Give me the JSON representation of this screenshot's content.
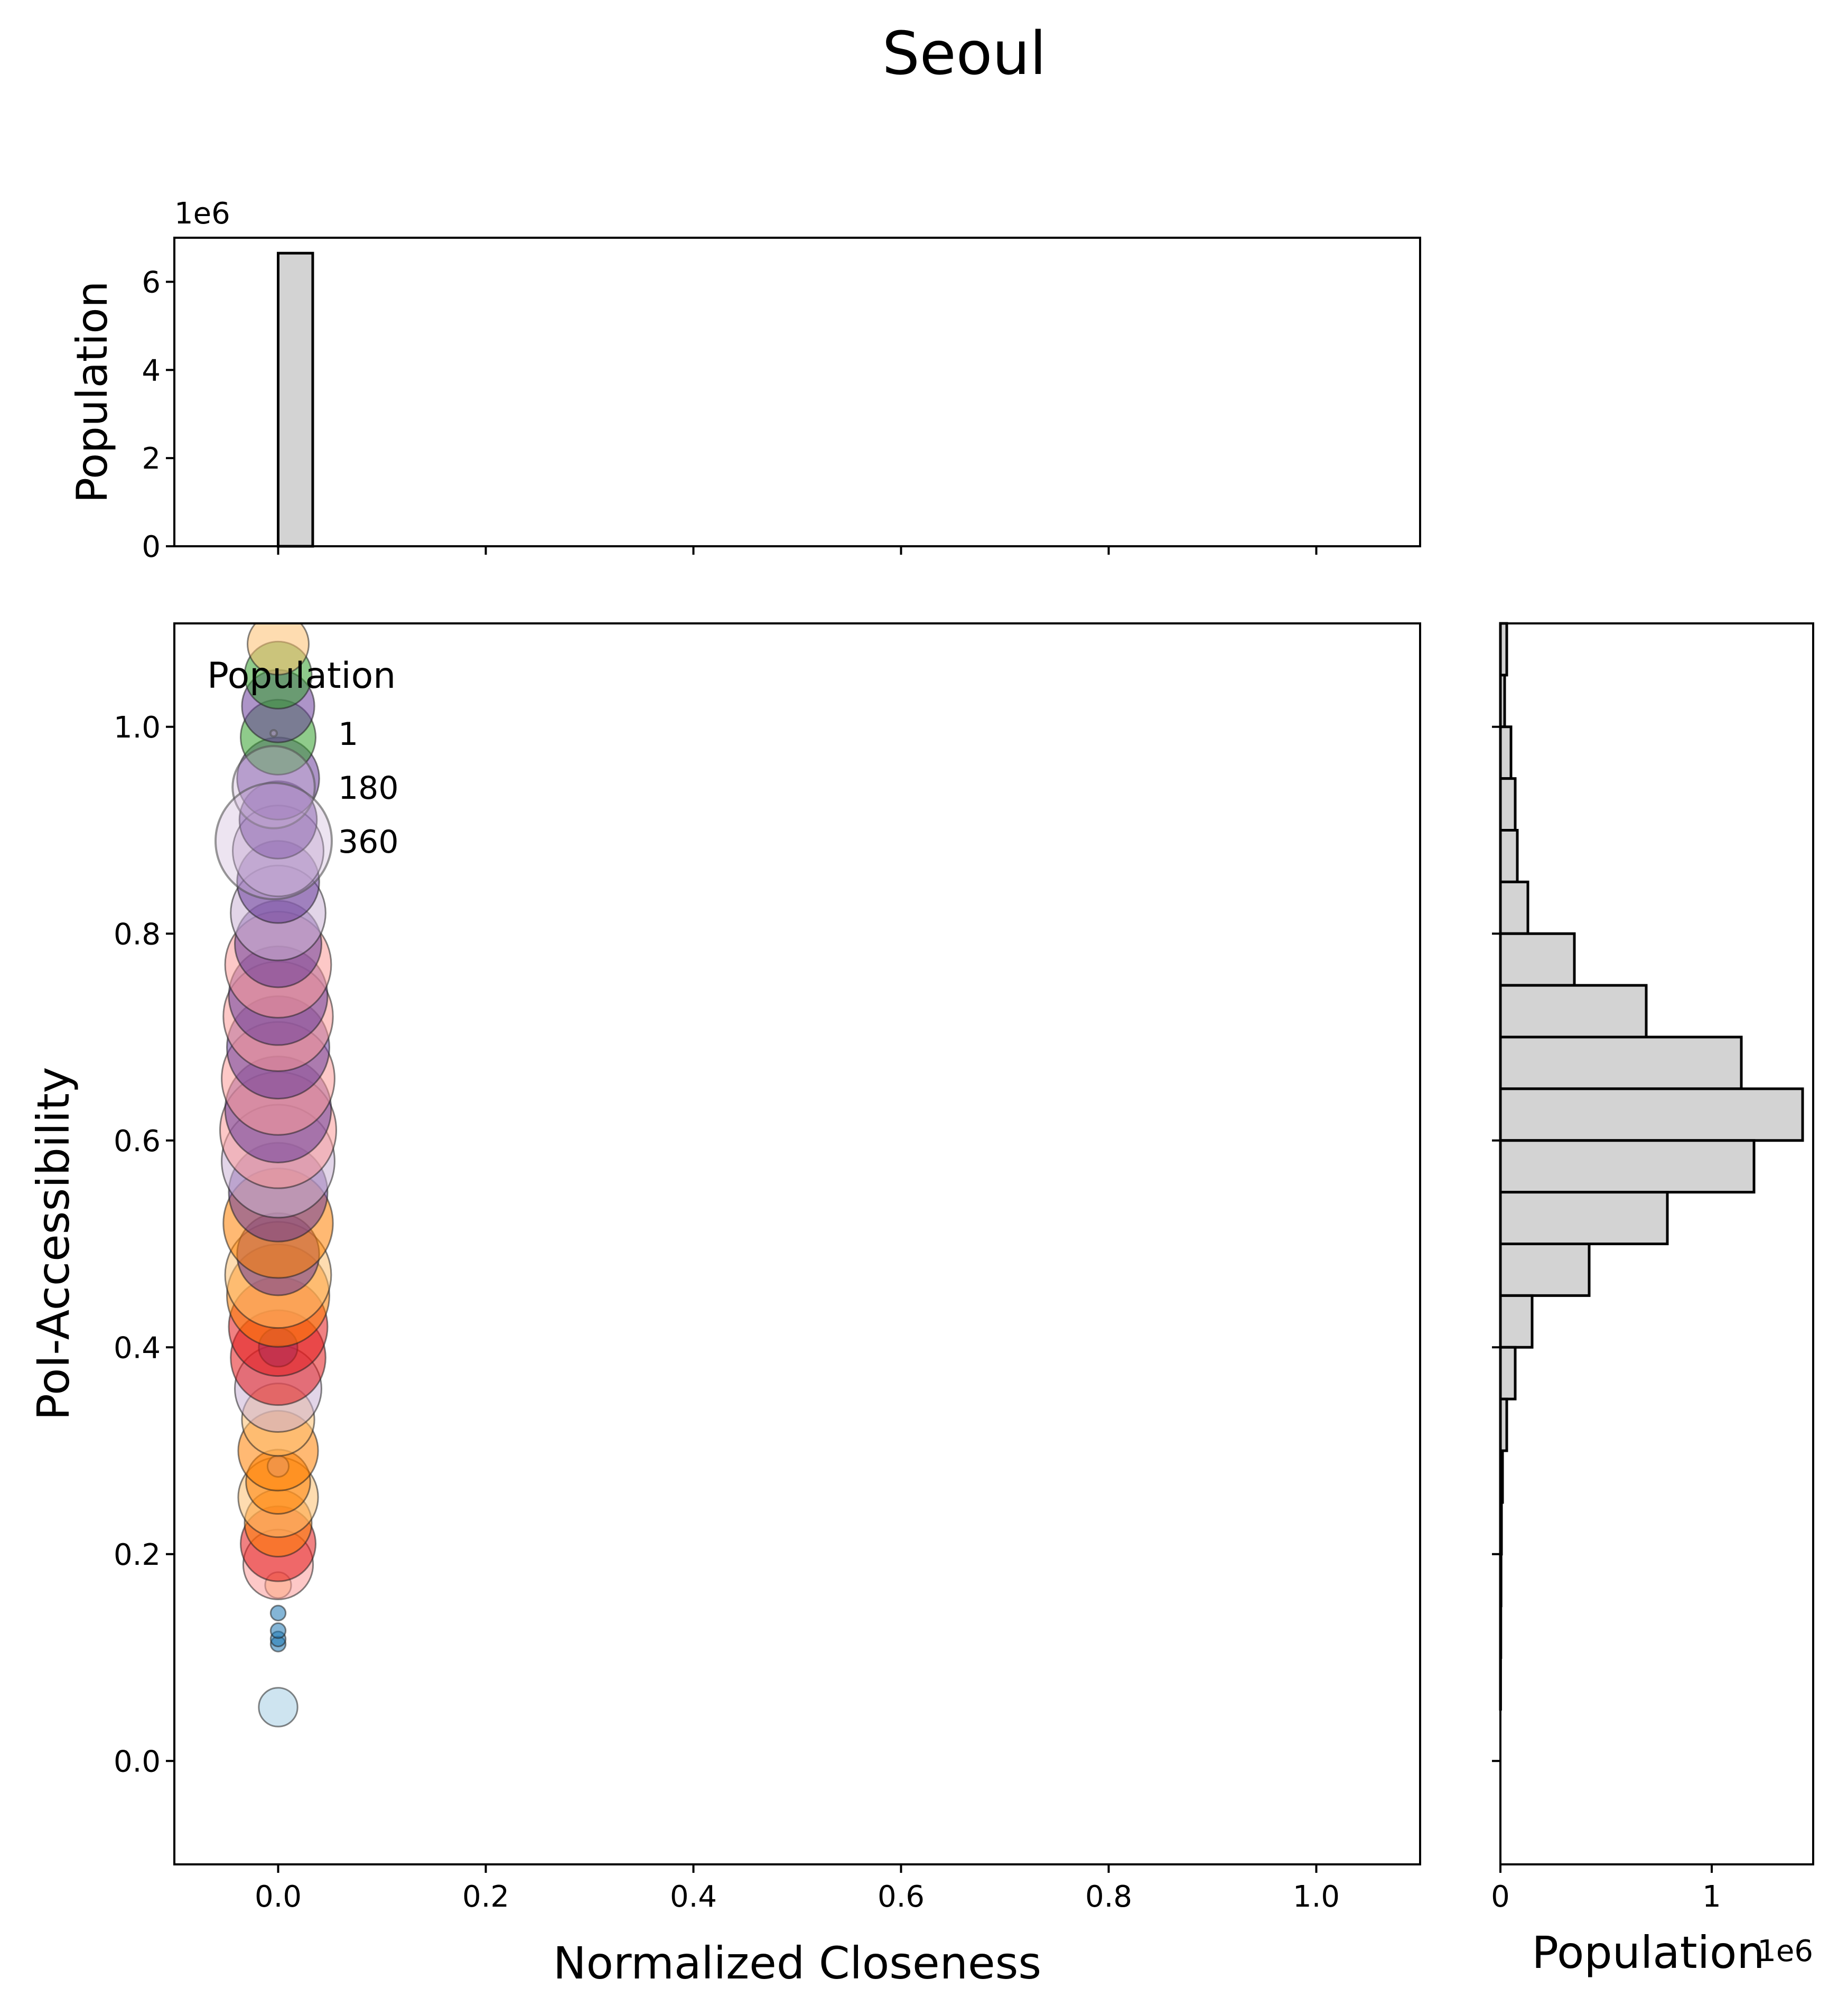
{
  "figure": {
    "title": "Seoul"
  },
  "chart_data": [
    {
      "type": "bar",
      "panel": "top-marginal-histogram",
      "xlabel": "",
      "ylabel": "Population",
      "offset_label": "1e6",
      "xlim": [
        -0.1,
        1.1
      ],
      "ylim": [
        0,
        7.0
      ],
      "yticks": [
        0,
        2,
        4,
        6
      ],
      "xticks": [
        0.0,
        0.2,
        0.4,
        0.6,
        0.8,
        1.0
      ],
      "bins": [
        {
          "x0": 0.0,
          "x1": 0.0333,
          "value": 6.65
        }
      ],
      "bar_color": "#d3d3d3",
      "edge_color": "#000000"
    },
    {
      "type": "scatter",
      "panel": "main-scatter",
      "xlabel": "Normalized Closeness",
      "ylabel": "PoI-Accessibility",
      "xlim": [
        -0.1,
        1.1
      ],
      "ylim": [
        -0.1,
        1.1
      ],
      "xticks": [
        "0.0",
        "0.2",
        "0.4",
        "0.6",
        "0.8",
        "1.0"
      ],
      "yticks": [
        "0.0",
        "0.2",
        "0.4",
        "0.6",
        "0.8",
        "1.0"
      ],
      "legend": {
        "title": "Population",
        "placement": "top-left",
        "entries": [
          {
            "label": "1",
            "size": 1
          },
          {
            "label": "180",
            "size": 180
          },
          {
            "label": "360",
            "size": 360
          }
        ]
      },
      "size_max_population": 360,
      "points": [
        {
          "x": 0.0,
          "y": 0.052,
          "s": 40,
          "color": "#a6cee3"
        },
        {
          "x": 0.0,
          "y": 0.113,
          "s": 6,
          "color": "#1f78b4"
        },
        {
          "x": 0.0,
          "y": 0.118,
          "s": 6,
          "color": "#1f78b4"
        },
        {
          "x": 0.0,
          "y": 0.126,
          "s": 6,
          "color": "#1f78b4"
        },
        {
          "x": 0.0,
          "y": 0.143,
          "s": 6,
          "color": "#1f78b4"
        },
        {
          "x": 0.0,
          "y": 0.17,
          "s": 18,
          "color": "#fdbf6f"
        },
        {
          "x": 0.0,
          "y": 0.19,
          "s": 130,
          "color": "#fb9a99"
        },
        {
          "x": 0.0,
          "y": 0.21,
          "s": 150,
          "color": "#e31a1c"
        },
        {
          "x": 0.0,
          "y": 0.23,
          "s": 120,
          "color": "#ff7f00"
        },
        {
          "x": 0.0,
          "y": 0.255,
          "s": 170,
          "color": "#fdbf6f"
        },
        {
          "x": 0.0,
          "y": 0.27,
          "s": 110,
          "color": "#ff7f00"
        },
        {
          "x": 0.0,
          "y": 0.285,
          "s": 12,
          "color": "#cab2d6"
        },
        {
          "x": 0.0,
          "y": 0.3,
          "s": 170,
          "color": "#ff7f00"
        },
        {
          "x": 0.0,
          "y": 0.33,
          "s": 140,
          "color": "#fdbf6f"
        },
        {
          "x": 0.0,
          "y": 0.36,
          "s": 200,
          "color": "#cab2d6"
        },
        {
          "x": 0.0,
          "y": 0.39,
          "s": 240,
          "color": "#e31a1c"
        },
        {
          "x": 0.0,
          "y": 0.4,
          "s": 40,
          "color": "#6a3d9a"
        },
        {
          "x": 0.0,
          "y": 0.42,
          "s": 260,
          "color": "#e31a1c"
        },
        {
          "x": 0.0,
          "y": 0.45,
          "s": 280,
          "color": "#ff7f00"
        },
        {
          "x": 0.0,
          "y": 0.47,
          "s": 300,
          "color": "#fdbf6f"
        },
        {
          "x": 0.0,
          "y": 0.49,
          "s": 180,
          "color": "#6a3d9a"
        },
        {
          "x": 0.0,
          "y": 0.52,
          "s": 320,
          "color": "#ff7f00"
        },
        {
          "x": 0.0,
          "y": 0.55,
          "s": 260,
          "color": "#6a3d9a"
        },
        {
          "x": 0.0,
          "y": 0.58,
          "s": 340,
          "color": "#cab2d6"
        },
        {
          "x": 0.0,
          "y": 0.61,
          "s": 360,
          "color": "#fb9a99"
        },
        {
          "x": 0.0,
          "y": 0.63,
          "s": 300,
          "color": "#6a3d9a"
        },
        {
          "x": 0.0,
          "y": 0.66,
          "s": 340,
          "color": "#fb9a99"
        },
        {
          "x": 0.0,
          "y": 0.69,
          "s": 280,
          "color": "#6a3d9a"
        },
        {
          "x": 0.0,
          "y": 0.72,
          "s": 320,
          "color": "#fb9a99"
        },
        {
          "x": 0.0,
          "y": 0.74,
          "s": 260,
          "color": "#6a3d9a"
        },
        {
          "x": 0.0,
          "y": 0.77,
          "s": 300,
          "color": "#fb9a99"
        },
        {
          "x": 0.0,
          "y": 0.79,
          "s": 200,
          "color": "#6a3d9a"
        },
        {
          "x": 0.0,
          "y": 0.82,
          "s": 240,
          "color": "#cab2d6"
        },
        {
          "x": 0.0,
          "y": 0.85,
          "s": 180,
          "color": "#6a3d9a"
        },
        {
          "x": 0.0,
          "y": 0.88,
          "s": 220,
          "color": "#cab2d6"
        },
        {
          "x": 0.0,
          "y": 0.91,
          "s": 160,
          "color": "#6a3d9a"
        },
        {
          "x": 0.0,
          "y": 0.95,
          "s": 180,
          "color": "#6a3d9a"
        },
        {
          "x": 0.0,
          "y": 0.99,
          "s": 150,
          "color": "#33a02c"
        },
        {
          "x": 0.0,
          "y": 1.02,
          "s": 140,
          "color": "#6a3d9a"
        },
        {
          "x": 0.0,
          "y": 1.05,
          "s": 120,
          "color": "#33a02c"
        },
        {
          "x": 0.0,
          "y": 1.08,
          "s": 100,
          "color": "#fdbf6f"
        }
      ]
    },
    {
      "type": "bar",
      "panel": "right-marginal-histogram",
      "orientation": "horizontal",
      "xlabel": "Population",
      "ylabel": "",
      "offset_label": "1e6",
      "xlim": [
        0,
        1.48
      ],
      "xticks": [
        0,
        1
      ],
      "ylim": [
        -0.1,
        1.1
      ],
      "bins": [
        {
          "y0": 1.05,
          "y1": 1.1,
          "value": 0.03
        },
        {
          "y0": 1.0,
          "y1": 1.05,
          "value": 0.02
        },
        {
          "y0": 0.95,
          "y1": 1.0,
          "value": 0.05
        },
        {
          "y0": 0.9,
          "y1": 0.95,
          "value": 0.07
        },
        {
          "y0": 0.85,
          "y1": 0.9,
          "value": 0.08
        },
        {
          "y0": 0.8,
          "y1": 0.85,
          "value": 0.13
        },
        {
          "y0": 0.75,
          "y1": 0.8,
          "value": 0.35
        },
        {
          "y0": 0.7,
          "y1": 0.75,
          "value": 0.69
        },
        {
          "y0": 0.65,
          "y1": 0.7,
          "value": 1.14
        },
        {
          "y0": 0.6,
          "y1": 0.65,
          "value": 1.43
        },
        {
          "y0": 0.55,
          "y1": 0.6,
          "value": 1.2
        },
        {
          "y0": 0.5,
          "y1": 0.55,
          "value": 0.79
        },
        {
          "y0": 0.45,
          "y1": 0.5,
          "value": 0.42
        },
        {
          "y0": 0.4,
          "y1": 0.45,
          "value": 0.15
        },
        {
          "y0": 0.35,
          "y1": 0.4,
          "value": 0.07
        },
        {
          "y0": 0.3,
          "y1": 0.35,
          "value": 0.03
        },
        {
          "y0": 0.25,
          "y1": 0.3,
          "value": 0.01
        },
        {
          "y0": 0.2,
          "y1": 0.25,
          "value": 0.005
        },
        {
          "y0": 0.15,
          "y1": 0.2,
          "value": 0.003
        },
        {
          "y0": 0.1,
          "y1": 0.15,
          "value": 0.002
        },
        {
          "y0": 0.05,
          "y1": 0.1,
          "value": 0.001
        }
      ],
      "bar_color": "#d3d3d3",
      "edge_color": "#000000"
    }
  ]
}
